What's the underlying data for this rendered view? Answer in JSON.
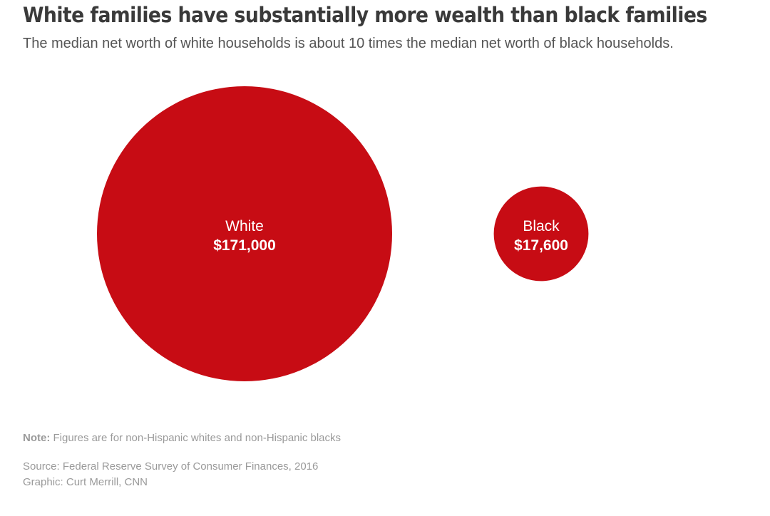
{
  "chart_data": {
    "type": "bubble",
    "title": "White families have substantially more wealth than black families",
    "subtitle": "The median net worth of white households is about 10 times the median net worth of black households.",
    "color": "#c70c14",
    "series": [
      {
        "name": "White",
        "value": 171000,
        "value_label": "$171,000"
      },
      {
        "name": "Black",
        "value": 17600,
        "value_label": "$17,600"
      }
    ],
    "area_proportional": true
  },
  "footer": {
    "note_label": "Note:",
    "note_text": "Figures are for non-Hispanic whites and non-Hispanic blacks",
    "source": "Source: Federal Reserve Survey of Consumer Finances, 2016",
    "credit": "Graphic: Curt Merrill, CNN"
  }
}
